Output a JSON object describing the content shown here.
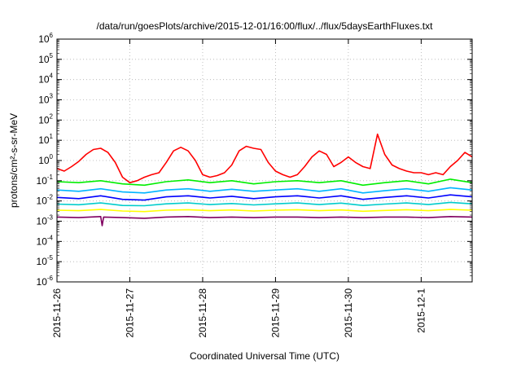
{
  "chart_data": {
    "type": "line",
    "title": "/data/run/goesPlots/archive/2015-12-01/16:00/flux/../flux/5daysEarthFluxes.txt",
    "xlabel": "Coordinated Universal Time (UTC)",
    "ylabel": "protons/cm²-s-sr-MeV",
    "y_scale": "log",
    "ylim": [
      1e-06,
      1000000.0
    ],
    "y_ticks": [
      "10^-6",
      "10^-5",
      "10^-4",
      "10^-3",
      "10^-2",
      "10^-1",
      "10^0",
      "10^1",
      "10^2",
      "10^3",
      "10^4",
      "10^5",
      "10^6"
    ],
    "xlim_days": [
      0,
      5.7
    ],
    "x_ticks": [
      {
        "label": "2015-11-26",
        "day": 0
      },
      {
        "label": "2015-11-27",
        "day": 1
      },
      {
        "label": "2015-11-28",
        "day": 2
      },
      {
        "label": "2015-11-29",
        "day": 3
      },
      {
        "label": "2015-11-30",
        "day": 4
      },
      {
        "label": "2015-12-1",
        "day": 5
      }
    ],
    "grid": true,
    "series": [
      {
        "color": "#ff0000",
        "x": [
          0.0,
          0.1,
          0.2,
          0.3,
          0.4,
          0.5,
          0.6,
          0.7,
          0.8,
          0.9,
          1.0,
          1.1,
          1.2,
          1.3,
          1.4,
          1.5,
          1.6,
          1.7,
          1.8,
          1.9,
          2.0,
          2.1,
          2.2,
          2.3,
          2.4,
          2.5,
          2.6,
          2.7,
          2.8,
          2.9,
          3.0,
          3.1,
          3.2,
          3.3,
          3.4,
          3.5,
          3.6,
          3.7,
          3.8,
          3.9,
          4.0,
          4.1,
          4.2,
          4.3,
          4.4,
          4.5,
          4.6,
          4.7,
          4.8,
          4.9,
          5.0,
          5.1,
          5.2,
          5.3,
          5.4,
          5.5,
          5.6,
          5.7
        ],
        "values": [
          0.4,
          0.3,
          0.5,
          0.9,
          2.0,
          3.5,
          4.0,
          2.5,
          0.8,
          0.15,
          0.08,
          0.1,
          0.15,
          0.2,
          0.25,
          0.8,
          3.0,
          4.5,
          3.0,
          1.0,
          0.2,
          0.15,
          0.18,
          0.25,
          0.6,
          3.0,
          5.0,
          4.0,
          3.5,
          0.8,
          0.3,
          0.2,
          0.15,
          0.2,
          0.5,
          1.5,
          3.0,
          2.0,
          0.5,
          0.8,
          1.5,
          0.8,
          0.5,
          0.4,
          20.0,
          2.0,
          0.6,
          0.4,
          0.3,
          0.25,
          0.25,
          0.2,
          0.25,
          0.2,
          0.5,
          1.0,
          2.5,
          1.5
        ]
      },
      {
        "color": "#00ee00",
        "x": [
          0.0,
          0.3,
          0.6,
          0.9,
          1.2,
          1.5,
          1.8,
          2.1,
          2.4,
          2.7,
          3.0,
          3.3,
          3.6,
          3.9,
          4.2,
          4.5,
          4.8,
          5.1,
          5.4,
          5.7
        ],
        "values": [
          0.09,
          0.08,
          0.1,
          0.07,
          0.06,
          0.09,
          0.11,
          0.08,
          0.1,
          0.07,
          0.09,
          0.1,
          0.08,
          0.1,
          0.06,
          0.08,
          0.1,
          0.07,
          0.12,
          0.08
        ]
      },
      {
        "color": "#00b4ff",
        "x": [
          0.0,
          0.3,
          0.6,
          0.9,
          1.2,
          1.5,
          1.8,
          2.1,
          2.4,
          2.7,
          3.0,
          3.3,
          3.6,
          3.9,
          4.2,
          4.5,
          4.8,
          5.1,
          5.4,
          5.7
        ],
        "values": [
          0.035,
          0.03,
          0.04,
          0.028,
          0.025,
          0.035,
          0.04,
          0.03,
          0.038,
          0.03,
          0.035,
          0.04,
          0.03,
          0.04,
          0.025,
          0.032,
          0.04,
          0.03,
          0.045,
          0.035
        ]
      },
      {
        "color": "#0000ff",
        "x": [
          0.0,
          0.3,
          0.6,
          0.9,
          1.2,
          1.5,
          1.8,
          2.1,
          2.4,
          2.7,
          3.0,
          3.3,
          3.6,
          3.9,
          4.2,
          4.5,
          4.8,
          5.1,
          5.4,
          5.7
        ],
        "values": [
          0.015,
          0.013,
          0.018,
          0.012,
          0.011,
          0.016,
          0.018,
          0.014,
          0.017,
          0.013,
          0.016,
          0.018,
          0.014,
          0.018,
          0.012,
          0.015,
          0.018,
          0.014,
          0.02,
          0.016
        ]
      },
      {
        "color": "#00cccc",
        "x": [
          0.0,
          0.3,
          0.6,
          0.9,
          1.2,
          1.5,
          1.8,
          2.1,
          2.4,
          2.7,
          3.0,
          3.3,
          3.6,
          3.9,
          4.2,
          4.5,
          4.8,
          5.1,
          5.4,
          5.7
        ],
        "values": [
          0.007,
          0.0065,
          0.008,
          0.006,
          0.0058,
          0.0072,
          0.008,
          0.0066,
          0.0075,
          0.0064,
          0.0072,
          0.008,
          0.0066,
          0.0078,
          0.006,
          0.007,
          0.008,
          0.0066,
          0.0085,
          0.0072
        ]
      },
      {
        "color": "#ffff00",
        "x": [
          0.0,
          0.3,
          0.6,
          0.9,
          1.2,
          1.5,
          1.8,
          2.1,
          2.4,
          2.7,
          3.0,
          3.3,
          3.6,
          3.9,
          4.2,
          4.5,
          4.8,
          5.1,
          5.4,
          5.7
        ],
        "values": [
          0.0035,
          0.0033,
          0.0038,
          0.0032,
          0.003,
          0.0035,
          0.0037,
          0.0033,
          0.0036,
          0.0032,
          0.0035,
          0.0037,
          0.0033,
          0.0036,
          0.0031,
          0.0034,
          0.0037,
          0.0033,
          0.0038,
          0.0035
        ]
      },
      {
        "color": "#800060",
        "x": [
          0.0,
          0.3,
          0.6,
          0.62,
          0.64,
          0.9,
          1.2,
          1.5,
          1.8,
          2.1,
          2.4,
          2.7,
          3.0,
          3.3,
          3.6,
          3.9,
          4.2,
          4.5,
          4.8,
          5.1,
          5.4,
          5.7
        ],
        "values": [
          0.0016,
          0.0015,
          0.0017,
          0.0006,
          0.0016,
          0.0015,
          0.0014,
          0.0016,
          0.0017,
          0.0015,
          0.0016,
          0.0015,
          0.0016,
          0.0016,
          0.0015,
          0.0016,
          0.0015,
          0.0016,
          0.0016,
          0.0015,
          0.0017,
          0.0016
        ]
      }
    ]
  }
}
